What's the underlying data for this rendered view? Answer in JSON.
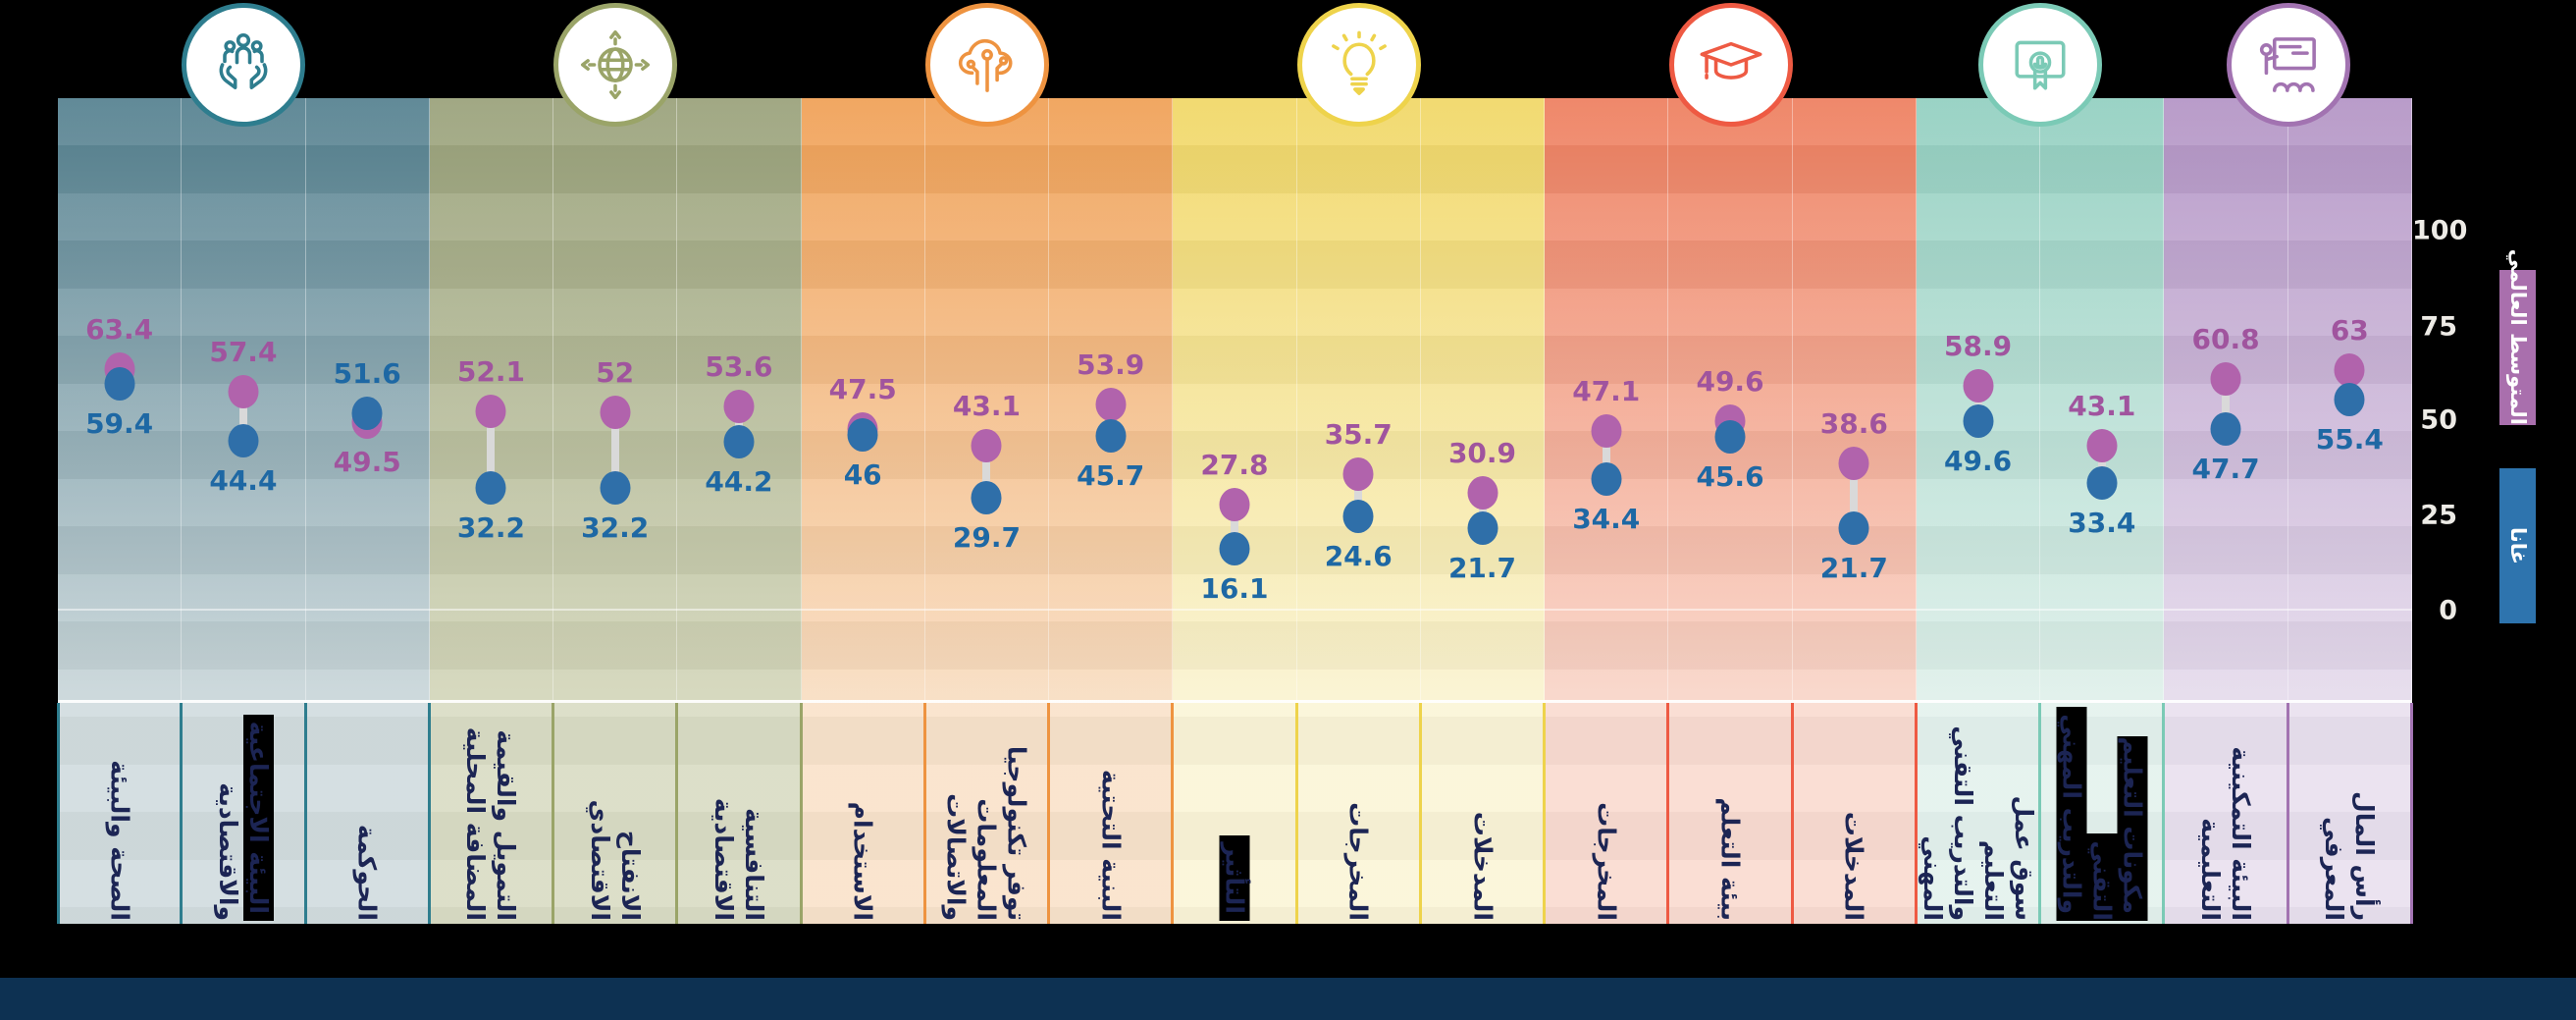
{
  "page": {
    "background": "#000000",
    "footer_color": "#0d3152"
  },
  "y_axis": {
    "min": 0,
    "max": 100,
    "ticks": [
      "100",
      "75",
      "50",
      "25",
      "0"
    ]
  },
  "legend": {
    "items": [
      {
        "label": "المتوسط العالمي",
        "color": "#a96fad",
        "series": "global"
      },
      {
        "label": "غانا",
        "color": "#2e74ae",
        "series": "ghana"
      }
    ]
  },
  "chart_data": {
    "type": "dumbbell",
    "series_names": [
      "المتوسط العالمي",
      "غانا"
    ],
    "ylim": [
      0,
      100
    ],
    "colors": {
      "global_dot": "#b163ac",
      "ghana_dot": "#2f6fa9",
      "connector": "#d9d9d9",
      "global_value_text": "#a0549e",
      "ghana_value_text": "#1e68a4",
      "category_text": "#1c2554"
    },
    "groups": [
      {
        "name": "society-health",
        "icon": "hands-people-icon",
        "accent": "#2e7d8e",
        "bg_top": "#54808f",
        "bg_bottom": "#c9d6d9",
        "categories": [
          {
            "lines": [
              "الصحة والبيئة"
            ],
            "global": 63.4,
            "ghana": 59.4
          },
          {
            "lines": [
              "البيئة الاجتماعية",
              "والاقتصادية"
            ],
            "black_lines": [
              0
            ],
            "global": 57.4,
            "ghana": 44.4
          },
          {
            "lines": [
              "الحوكمة"
            ],
            "global": 49.5,
            "ghana": 51.6
          }
        ]
      },
      {
        "name": "economy",
        "icon": "globe-arrows-icon",
        "accent": "#9aa468",
        "bg_top": "#99a17a",
        "bg_bottom": "#d3d6ba",
        "categories": [
          {
            "lines": [
              "التمويل والقيمة",
              "المضافة المحلية"
            ],
            "global": 52.1,
            "ghana": 32.2
          },
          {
            "lines": [
              "الانفتاح الاقتصادي"
            ],
            "global": 52,
            "ghana": 32.2
          },
          {
            "lines": [
              "التنافسية الاقتصادية"
            ],
            "global": 53.6,
            "ghana": 44.2
          }
        ]
      },
      {
        "name": "ict",
        "icon": "cloud-circuit-icon",
        "accent": "#ee9340",
        "bg_top": "#f0a055",
        "bg_bottom": "#f8ddc1",
        "categories": [
          {
            "lines": [
              "الاستخدام"
            ],
            "global": 47.5,
            "ghana": 46
          },
          {
            "lines": [
              "توفر تكنولوجيا",
              "المعلومات والاتصالات"
            ],
            "global": 43.1,
            "ghana": 29.7
          },
          {
            "lines": [
              "البنية التحتية"
            ],
            "global": 53.9,
            "ghana": 45.7
          }
        ]
      },
      {
        "name": "innovation",
        "icon": "lightbulb-icon",
        "accent": "#eed34b",
        "bg_top": "#f1d765",
        "bg_bottom": "#faf3d0",
        "categories": [
          {
            "lines": [
              "التأثير"
            ],
            "black_lines": [
              0
            ],
            "global": 27.8,
            "ghana": 16.1
          },
          {
            "lines": [
              "المخرجات"
            ],
            "global": 35.7,
            "ghana": 24.6
          },
          {
            "lines": [
              "المدخلات"
            ],
            "global": 30.9,
            "ghana": 21.7
          }
        ]
      },
      {
        "name": "higher-education",
        "icon": "graduation-cap-icon",
        "accent": "#ee5a43",
        "bg_top": "#ee7e5e",
        "bg_bottom": "#f9d5c8",
        "categories": [
          {
            "lines": [
              "المخرجات"
            ],
            "global": 47.1,
            "ghana": 34.4
          },
          {
            "lines": [
              "بيئة التعلم"
            ],
            "global": 49.6,
            "ghana": 45.6
          },
          {
            "lines": [
              "المدخلات"
            ],
            "global": 38.6,
            "ghana": 21.7
          }
        ]
      },
      {
        "name": "tvet",
        "icon": "certificate-icon",
        "accent": "#7bcab6",
        "bg_top": "#92cfc0",
        "bg_bottom": "#dff0ea",
        "categories": [
          {
            "lines": [
              "سوق عمل التعليم",
              "والتدريب التقني",
              "المهني"
            ],
            "global": 58.9,
            "ghana": 49.6
          },
          {
            "lines": [
              "مكونات التعليم التقني",
              "والتدريب المهني"
            ],
            "black_lines": [
              0,
              1
            ],
            "global": 43.1,
            "ghana": 33.4
          }
        ]
      },
      {
        "name": "pre-university-education",
        "icon": "training-board-icon",
        "accent": "#a273b1",
        "bg_top": "#b394c5",
        "bg_bottom": "#e5dbec",
        "categories": [
          {
            "lines": [
              "البيئة التمكينية",
              "التعليمية"
            ],
            "global": 60.8,
            "ghana": 47.7
          },
          {
            "lines": [
              "رأس المال",
              "المعرفي"
            ],
            "global": 63,
            "ghana": 55.4
          }
        ]
      }
    ]
  }
}
